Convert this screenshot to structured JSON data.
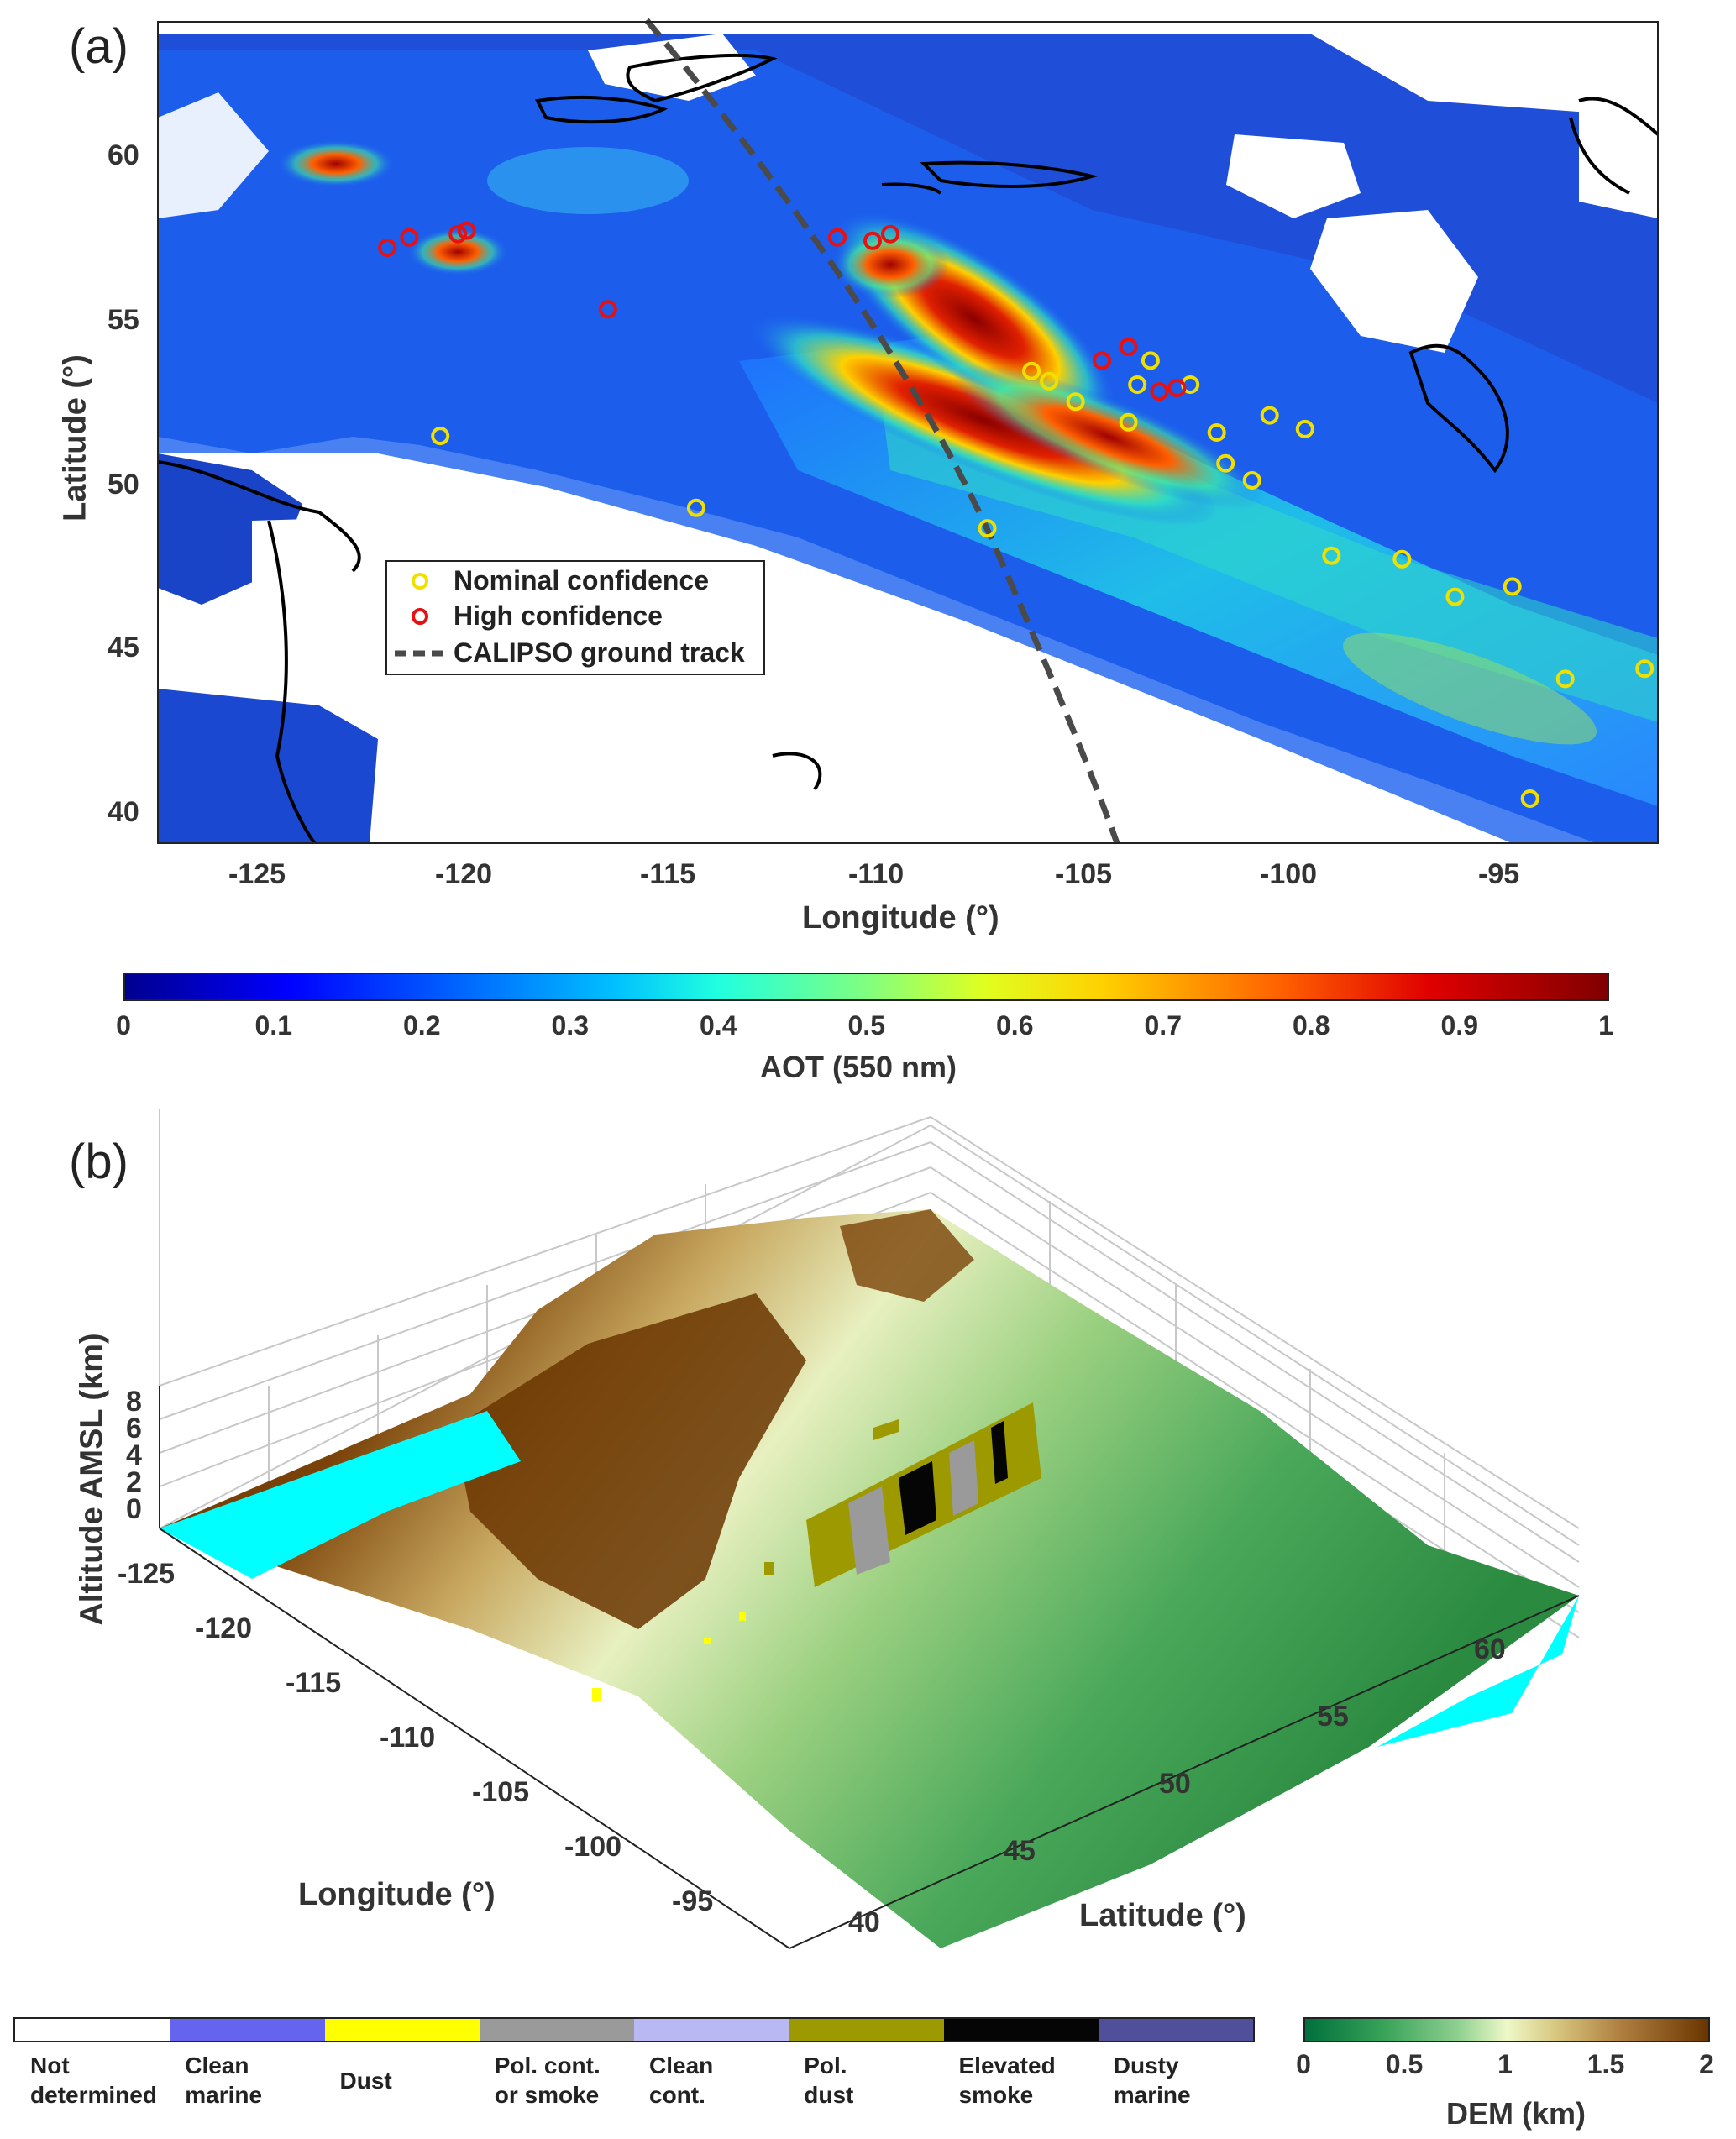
{
  "panel_a": {
    "label": "(a)",
    "xlabel": "Longitude (°)",
    "ylabel": "Latitude (°)",
    "xticks": [
      "-125",
      "-120",
      "-115",
      "-110",
      "-105",
      "-100",
      "-95"
    ],
    "yticks": [
      "60",
      "55",
      "50",
      "45",
      "40"
    ],
    "legend": [
      "Nominal confidence",
      "High confidence",
      "CALIPSO ground track"
    ]
  },
  "aot_colorbar": {
    "label": "AOT (550 nm)",
    "ticks": [
      "0",
      "0.1",
      "0.2",
      "0.3",
      "0.4",
      "0.5",
      "0.6",
      "0.7",
      "0.8",
      "0.9",
      "1"
    ]
  },
  "panel_b": {
    "label": "(b)",
    "zlabel": "Altitude AMSL (km)",
    "xlabel": "Longitude (°)",
    "ylabel": "Latitude (°)",
    "zticks": [
      "8",
      "6",
      "4",
      "2",
      "0"
    ],
    "lon_ticks": [
      "-125",
      "-120",
      "-115",
      "-110",
      "-105",
      "-100",
      "-95"
    ],
    "lat_ticks": [
      "40",
      "45",
      "50",
      "55",
      "60"
    ]
  },
  "aerosol_legend": [
    {
      "line1": "Not",
      "line2": "determined",
      "color": "#ffffff"
    },
    {
      "line1": "Clean",
      "line2": "marine",
      "color": "#6464ef"
    },
    {
      "line1": "Dust",
      "line2": "",
      "color": "#ffff00"
    },
    {
      "line1": "Pol. cont.",
      "line2": "or smoke",
      "color": "#9a9a9a"
    },
    {
      "line1": "Clean",
      "line2": "cont.",
      "color": "#b8b8f2"
    },
    {
      "line1": "Pol.",
      "line2": "dust",
      "color": "#9c9a00"
    },
    {
      "line1": "Elevated",
      "line2": "smoke",
      "color": "#050505"
    },
    {
      "line1": "Dusty",
      "line2": "marine",
      "color": "#4f4f9a"
    }
  ],
  "dem_colorbar": {
    "label": "DEM (km)",
    "ticks": [
      "0",
      "0.5",
      "1",
      "1.5",
      "2"
    ]
  },
  "chart_data": [
    {
      "type": "heatmap",
      "panel": "(a)",
      "variable": "AOT (550 nm)",
      "xlabel": "Longitude (°)",
      "ylabel": "Latitude (°)",
      "xlim": [
        -127,
        -93
      ],
      "ylim": [
        39,
        63
      ],
      "clim": [
        0,
        1
      ],
      "colormap": "jet",
      "smoke_plumes": [
        {
          "lon": -109.5,
          "lat": 52.3,
          "peak_aot": 1.0
        },
        {
          "lon": -110.5,
          "lat": 56.5,
          "peak_aot": 1.0
        },
        {
          "lon": -120.5,
          "lat": 56.8,
          "peak_aot": 0.9
        },
        {
          "lon": -123.5,
          "lat": 59.8,
          "peak_aot": 0.8
        }
      ],
      "fire_detections": {
        "high_confidence": [
          [
            -121.8,
            56.4
          ],
          [
            -121.3,
            56.7
          ],
          [
            -120.2,
            56.8
          ],
          [
            -120.0,
            56.9
          ],
          [
            -116.8,
            54.6
          ],
          [
            -111.6,
            56.7
          ],
          [
            -110.8,
            56.6
          ],
          [
            -110.4,
            56.8
          ],
          [
            -105.6,
            53.1
          ],
          [
            -105.0,
            53.5
          ],
          [
            -104.3,
            52.2
          ],
          [
            -103.9,
            52.3
          ]
        ],
        "nominal_confidence": [
          [
            -120.6,
            50.9
          ],
          [
            -114.8,
            48.8
          ],
          [
            -108.2,
            48.2
          ],
          [
            -107.2,
            52.8
          ],
          [
            -106.8,
            52.5
          ],
          [
            -106.2,
            51.9
          ],
          [
            -105.0,
            51.3
          ],
          [
            -104.8,
            52.4
          ],
          [
            -104.5,
            53.1
          ],
          [
            -103.6,
            52.4
          ],
          [
            -103.0,
            51.0
          ],
          [
            -102.8,
            50.1
          ],
          [
            -102.2,
            49.6
          ],
          [
            -101.8,
            51.5
          ],
          [
            -101.0,
            51.1
          ],
          [
            -100.4,
            47.4
          ],
          [
            -98.8,
            47.3
          ],
          [
            -97.6,
            46.2
          ],
          [
            -96.3,
            46.5
          ],
          [
            -95.9,
            40.3
          ],
          [
            -95.1,
            43.8
          ],
          [
            -93.3,
            44.1
          ]
        ]
      },
      "calipso_track": [
        [
          -115.8,
          63.0
        ],
        [
          -112.0,
          60.0
        ],
        [
          -109.0,
          56.0
        ],
        [
          -106.8,
          51.0
        ],
        [
          -105.2,
          46.0
        ],
        [
          -104.2,
          42.0
        ],
        [
          -103.6,
          39.0
        ]
      ]
    },
    {
      "type": "surface3d",
      "panel": "(b)",
      "variable": "DEM (km)",
      "xlabel": "Longitude (°)",
      "ylabel": "Latitude (°)",
      "zlabel": "Altitude AMSL (km)",
      "xlim": [
        -127,
        -93
      ],
      "ylim": [
        39,
        63
      ],
      "zlim": [
        0,
        8
      ],
      "clim": [
        0,
        2
      ],
      "curtain_classes": [
        "Not determined",
        "Clean marine",
        "Dust",
        "Pol. cont. or smoke",
        "Clean cont.",
        "Pol. dust",
        "Elevated smoke",
        "Dusty marine"
      ]
    }
  ]
}
